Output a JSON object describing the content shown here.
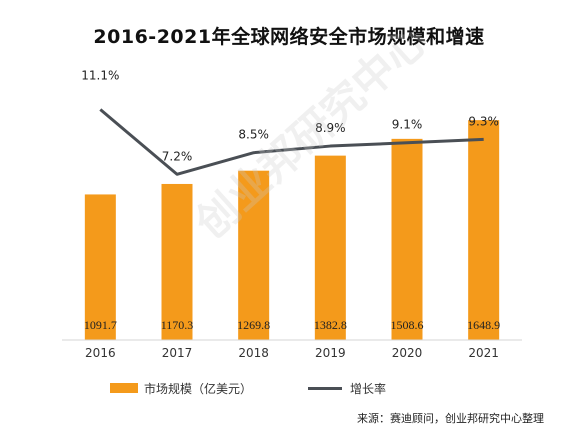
{
  "chart_data": {
    "type": "bar",
    "title": "2016-2021年全球网络安全市场规模和增速",
    "categories": [
      "2016",
      "2017",
      "2018",
      "2019",
      "2020",
      "2021"
    ],
    "series": [
      {
        "name": "市场规模（亿美元）",
        "type": "bar",
        "values": [
          1091.7,
          1170.3,
          1269.8,
          1382.8,
          1508.6,
          1648.9
        ],
        "value_labels": [
          "1091.7",
          "1170.3",
          "1269.8",
          "1382.8",
          "1508.6",
          "1648.9"
        ],
        "color": "#F49A1B"
      },
      {
        "name": "增长率",
        "type": "line",
        "values": [
          11.1,
          7.2,
          8.5,
          8.9,
          9.1,
          9.3
        ],
        "value_labels": [
          "11.1%",
          "7.2%",
          "8.5%",
          "8.9%",
          "9.1%",
          "9.3%"
        ],
        "color": "#4A4F55"
      }
    ],
    "bar_ylim": [
      0,
      2100
    ],
    "line_ylim": [
      3,
      13
    ],
    "grid": false,
    "legend_position": "bottom"
  },
  "legend": {
    "bar_label": "市场规模（亿美元）",
    "line_label": "增长率"
  },
  "source": "来源：赛迪顾问，创业邦研究中心整理",
  "watermark": "创业邦研究中心"
}
